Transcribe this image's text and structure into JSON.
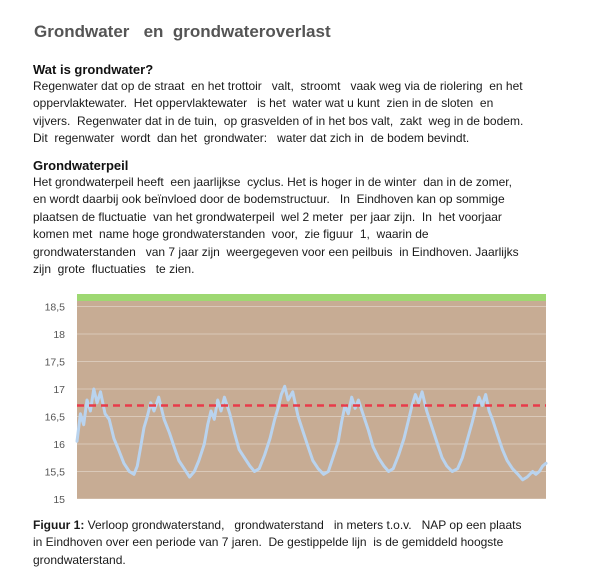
{
  "document": {
    "title": "Grondwater   en  grondwateroverlast",
    "section1": {
      "heading": "Wat is grondwater?",
      "lines": [
        "Regenwater dat op de straat  en het trottoir   valt,  stroomt   vaak weg via de riolering  en het",
        "oppervlaktewater.  Het oppervlaktewater   is het  water wat u kunt  zien in de sloten  en",
        "vijvers.  Regenwater dat in de tuin,  op grasvelden of in het bos valt,  zakt  weg in de bodem.",
        "Dit  regenwater  wordt  dan het  grondwater:   water dat zich in  de bodem bevindt."
      ]
    },
    "section2": {
      "heading": "Grondwaterpeil",
      "lines": [
        "Het grondwaterpeil heeft  een jaarlijkse  cyclus. Het is hoger in de winter  dan in de zomer,",
        "en wordt daarbij ook beïnvloed door de bodemstructuur.   In  Eindhoven kan op sommige",
        "plaatsen de fluctuatie  van het grondwaterpeil  wel 2 meter  per jaar zijn.  In  het voorjaar",
        "komen met  name hoge grondwaterstanden  voor,  zie figuur  1,  waarin de",
        "grondwaterstanden   van 7 jaar zijn  weergegeven voor een peilbuis  in Eindhoven. Jaarlijks",
        "zijn  grote  fluctuaties   te zien."
      ]
    },
    "caption": {
      "label": "Figuur 1:",
      "line1": " Verloop grondwaterstand,   grondwaterstand   in meters t.o.v.   NAP op een plaats",
      "line2": "in Eindhoven over een periode van 7 jaren.  De gestippelde lijn  is de gemiddeld hoogste",
      "line3": "grondwaterstand."
    }
  },
  "chart_data": {
    "type": "line",
    "yticks": [
      "18,5",
      "18",
      "17,5",
      "17",
      "16,5",
      "16",
      "15,5",
      "15"
    ],
    "ylim": [
      15,
      18.6
    ],
    "xlim": [
      0,
      7
    ],
    "reference_line": 16.7,
    "series": [
      {
        "x": [
          0,
          0.05,
          0.1,
          0.15,
          0.2,
          0.25,
          0.3,
          0.35,
          0.42,
          0.48,
          0.55,
          0.62,
          0.7,
          0.78,
          0.85,
          0.9,
          0.95,
          1.0,
          1.05,
          1.1,
          1.15,
          1.22,
          1.3,
          1.38,
          1.45,
          1.52,
          1.6,
          1.68,
          1.75,
          1.82,
          1.9,
          1.95,
          2.0,
          2.05,
          2.1,
          2.15,
          2.2,
          2.28,
          2.35,
          2.42,
          2.5,
          2.58,
          2.65,
          2.72,
          2.8,
          2.88,
          2.95,
          3.0,
          3.05,
          3.1,
          3.15,
          3.22,
          3.3,
          3.38,
          3.45,
          3.52,
          3.6,
          3.68,
          3.75,
          3.82,
          3.9,
          3.95,
          4.0,
          4.05,
          4.1,
          4.15,
          4.2,
          4.28,
          4.35,
          4.42,
          4.5,
          4.58,
          4.65,
          4.72,
          4.8,
          4.88,
          4.95,
          5.0,
          5.05,
          5.1,
          5.15,
          5.22,
          5.3,
          5.38,
          5.45,
          5.52,
          5.6,
          5.68,
          5.75,
          5.82,
          5.9,
          5.95,
          6.0,
          6.05,
          6.1,
          6.15,
          6.2,
          6.28,
          6.35,
          6.42,
          6.5,
          6.58,
          6.65,
          6.72,
          6.8,
          6.85,
          6.9,
          6.95,
          7.0
        ],
        "values": [
          16.05,
          16.55,
          16.35,
          16.8,
          16.6,
          17.0,
          16.75,
          16.95,
          16.55,
          16.45,
          16.1,
          15.9,
          15.65,
          15.5,
          15.45,
          15.6,
          15.95,
          16.3,
          16.5,
          16.75,
          16.6,
          16.85,
          16.45,
          16.2,
          15.95,
          15.7,
          15.55,
          15.4,
          15.5,
          15.7,
          16.0,
          16.35,
          16.6,
          16.45,
          16.8,
          16.6,
          16.85,
          16.55,
          16.2,
          15.9,
          15.75,
          15.6,
          15.5,
          15.55,
          15.8,
          16.1,
          16.45,
          16.65,
          16.9,
          17.05,
          16.8,
          16.95,
          16.5,
          16.2,
          15.95,
          15.7,
          15.55,
          15.45,
          15.5,
          15.75,
          16.05,
          16.4,
          16.7,
          16.55,
          16.85,
          16.65,
          16.8,
          16.5,
          16.25,
          15.95,
          15.75,
          15.6,
          15.5,
          15.55,
          15.8,
          16.1,
          16.45,
          16.7,
          16.9,
          16.75,
          16.95,
          16.6,
          16.3,
          16.0,
          15.75,
          15.6,
          15.5,
          15.55,
          15.75,
          16.05,
          16.4,
          16.65,
          16.85,
          16.7,
          16.9,
          16.6,
          16.45,
          16.15,
          15.9,
          15.7,
          15.55,
          15.45,
          15.35,
          15.4,
          15.5,
          15.45,
          15.5,
          15.6,
          15.65
        ]
      }
    ],
    "colors": {
      "plot_background": "#c7ac94",
      "top_band": "#9ed872",
      "line": "#b9d3ee",
      "reference": "#e83b4a",
      "grid": "#ffffff",
      "tick_text": "#555555"
    }
  }
}
